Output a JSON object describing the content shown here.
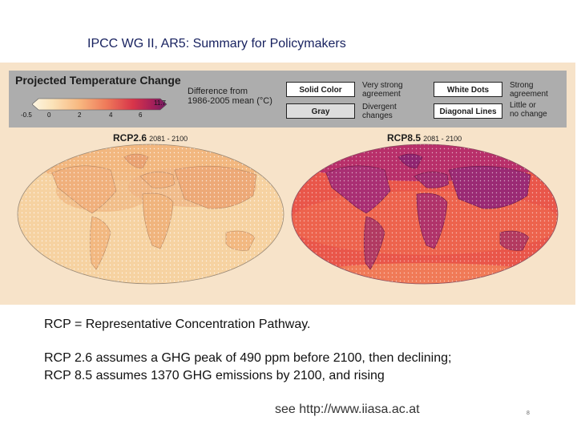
{
  "slide": {
    "title": "IPCC WG II, AR5: Summary for Policymakers",
    "page_number": "8",
    "link_text": "see http://www.iiasa.ac.at"
  },
  "figure": {
    "legend_title": "Projected Temperature Change",
    "difference_label_line1": "Difference from",
    "difference_label_line2": "1986-2005 mean (°C)",
    "colorbar_ticks": [
      "-0.5",
      "0",
      "2",
      "4",
      "6",
      "11.7"
    ],
    "solid_color_label": "Solid Color",
    "solid_color_desc_line1": "Very strong",
    "solid_color_desc_line2": "agreement",
    "gray_label": "Gray",
    "gray_desc_line1": "Divergent",
    "gray_desc_line2": "changes",
    "white_dots_label": "White Dots",
    "white_dots_desc_line1": "Strong",
    "white_dots_desc_line2": "agreement",
    "diagonal_lines_label": "Diagonal Lines",
    "diagonal_lines_desc_line1": "Little or",
    "diagonal_lines_desc_line2": "no change",
    "map_left_name": "RCP2.6",
    "map_left_period": "2081 - 2100",
    "map_right_name": "RCP8.5",
    "map_right_period": "2081 - 2100",
    "colors": {
      "background": "#f7e3c9",
      "legend_bar": "#adadad",
      "map_low_warming": "#f2c48e",
      "map_high_warming": "#e0393e",
      "strong_agreement": "#9c2a78"
    }
  },
  "text": {
    "line1": "RCP = Representative Concentration Pathway.",
    "line2": "RCP 2.6 assumes a GHG peak of 490 ppm before 2100, then declining;",
    "line3": "RCP 8.5 assumes 1370 GHG emissions by 2100, and rising"
  }
}
